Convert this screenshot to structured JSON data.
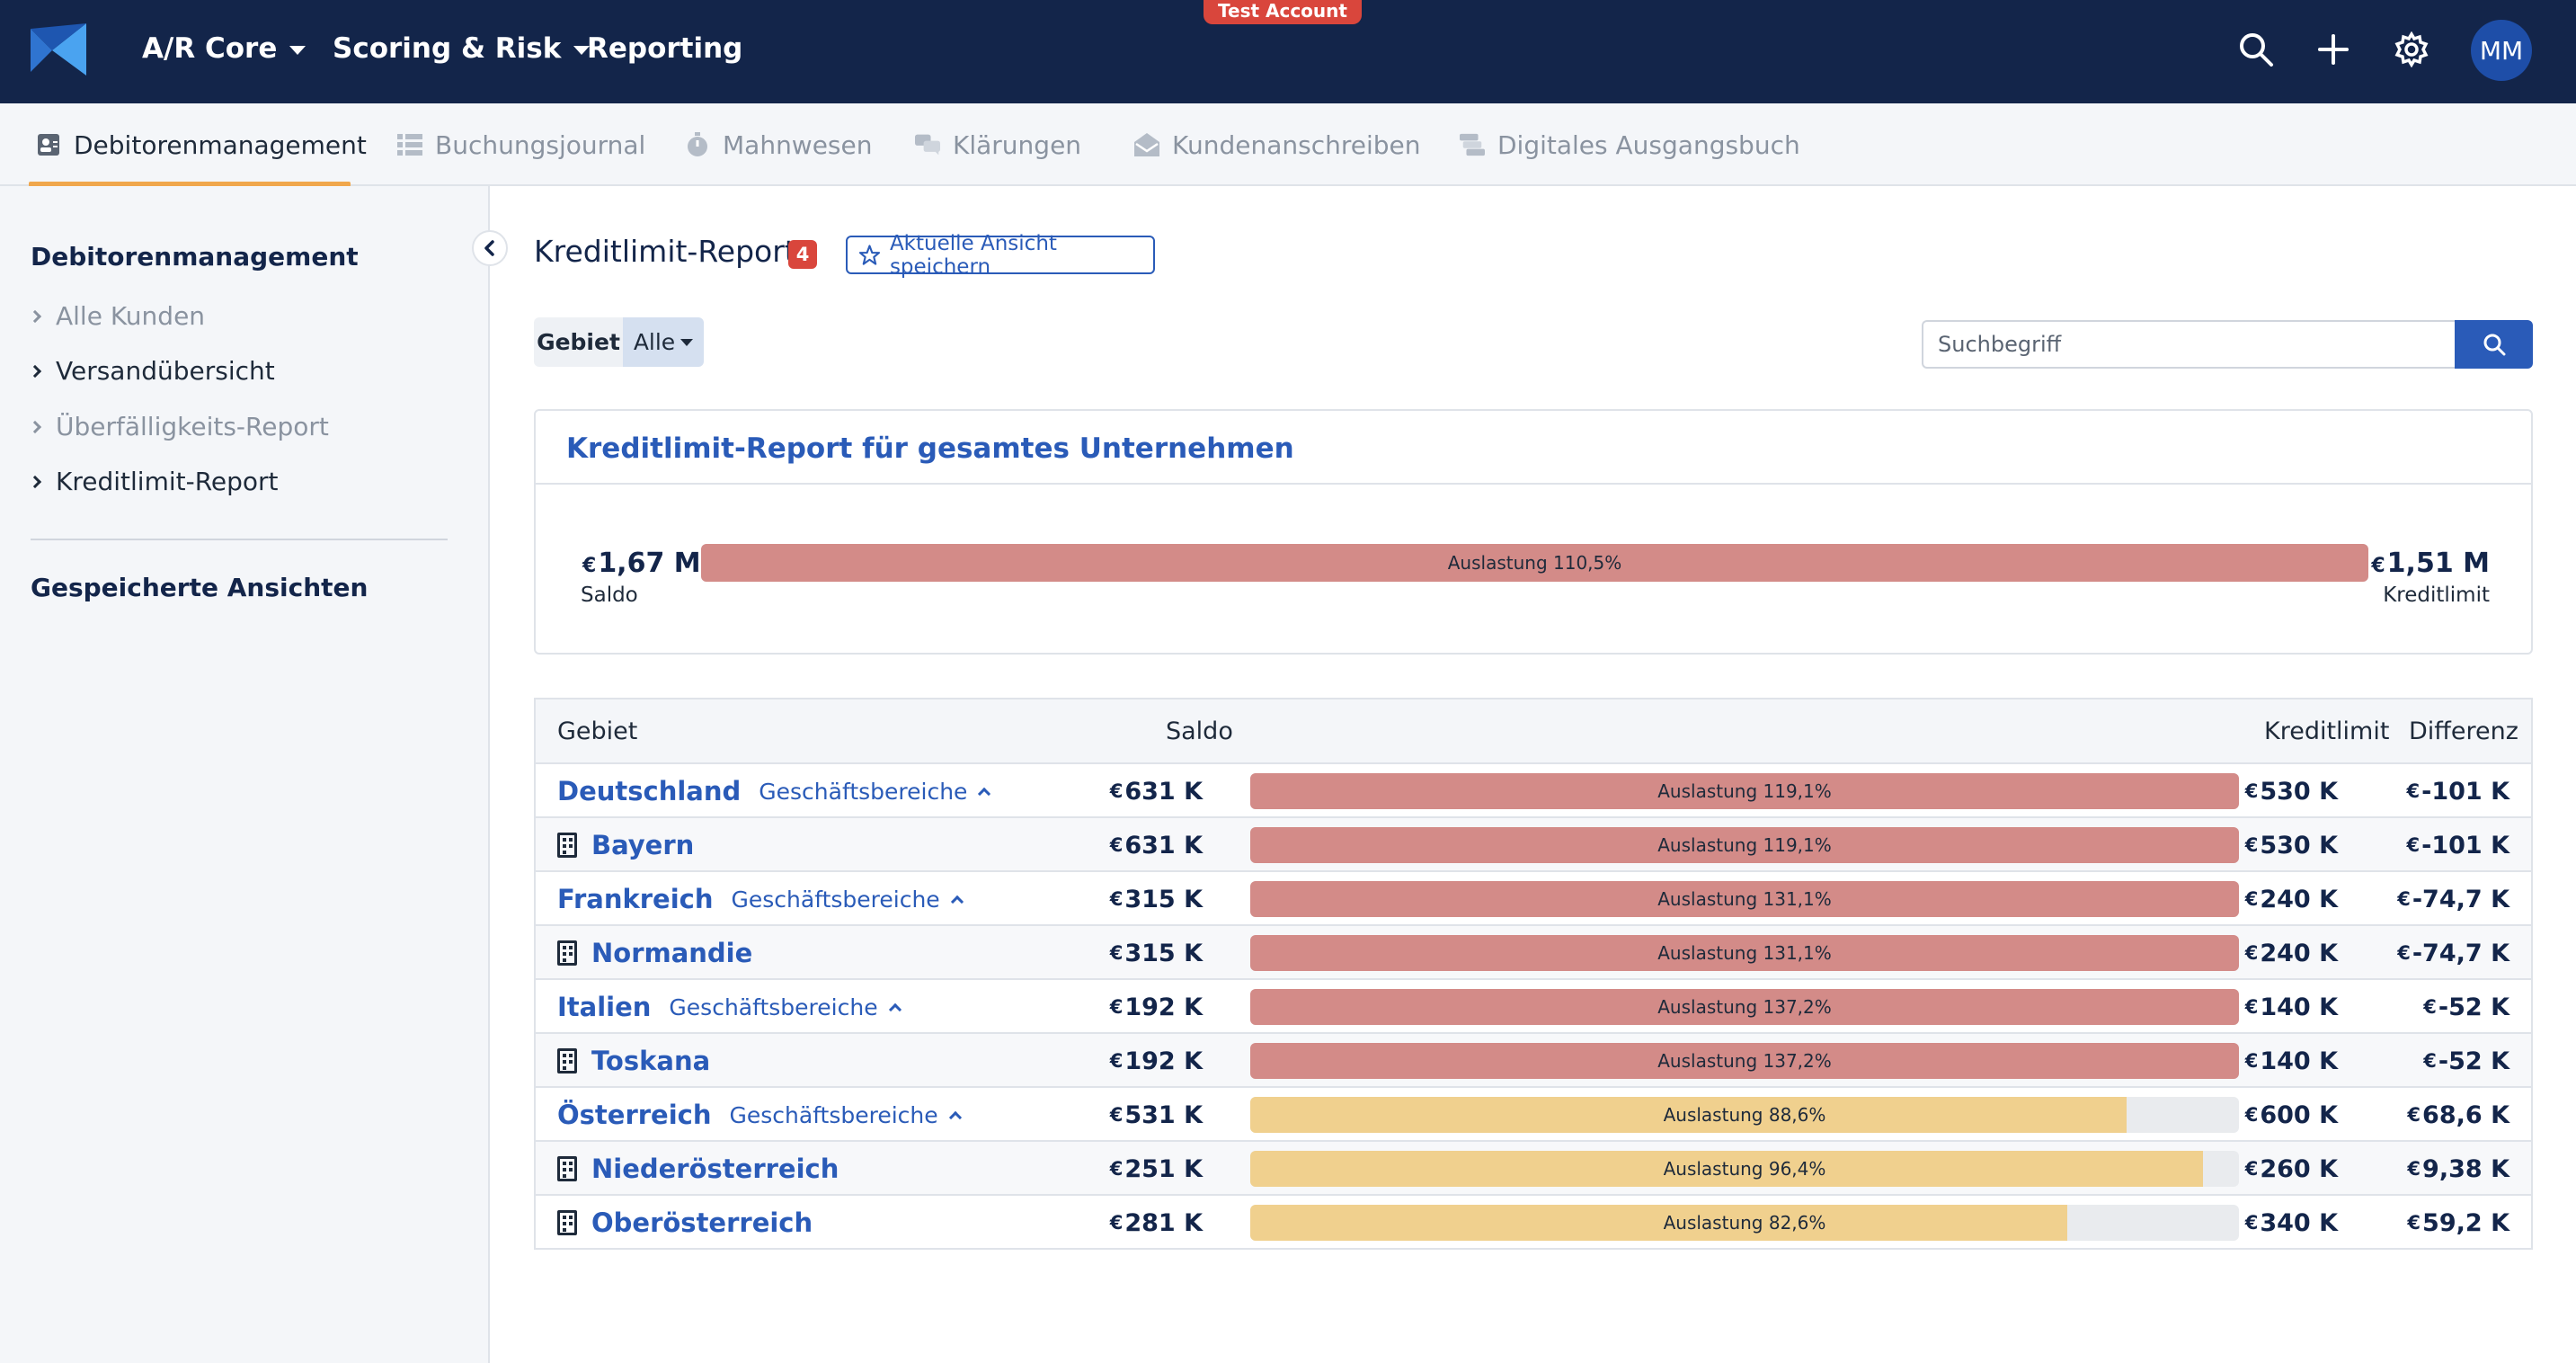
{
  "topbar": {
    "nav": [
      {
        "label": "A/R Core",
        "dropdown": true
      },
      {
        "label": "Scoring & Risk",
        "dropdown": true
      },
      {
        "label": "Reporting",
        "dropdown": false
      }
    ],
    "test_badge": "Test Account",
    "avatar": "MM",
    "icons": [
      "search-icon",
      "plus-icon",
      "gear-icon"
    ]
  },
  "tabs": [
    {
      "label": "Debitorenmanagement",
      "icon": "contact-card-icon",
      "active": true
    },
    {
      "label": "Buchungsjournal",
      "icon": "list-icon",
      "active": false
    },
    {
      "label": "Mahnwesen",
      "icon": "stopwatch-icon",
      "active": false
    },
    {
      "label": "Klärungen",
      "icon": "chat-icon",
      "active": false
    },
    {
      "label": "Kundenanschreiben",
      "icon": "envelope-icon",
      "active": false
    },
    {
      "label": "Digitales Ausgangsbuch",
      "icon": "stack-icon",
      "active": false
    }
  ],
  "sidebar": {
    "title": "Debitorenmanagement",
    "items": [
      {
        "label": "Alle Kunden",
        "muted": true
      },
      {
        "label": "Versandübersicht",
        "muted": false
      },
      {
        "label": "Überfälligkeits-Report",
        "muted": true
      },
      {
        "label": "Kreditlimit-Report",
        "muted": false
      }
    ],
    "saved_views_title": "Gespeicherte Ansichten"
  },
  "main": {
    "title": "Kreditlimit-Report",
    "count": "4",
    "save_view_label": "Aktuelle Ansicht speichern",
    "filter": {
      "label": "Gebiet",
      "value": "Alle"
    },
    "search": {
      "placeholder": "Suchbegriff",
      "value": ""
    }
  },
  "summary": {
    "title": "Kreditlimit-Report für gesamtes Unternehmen",
    "currency": "€",
    "saldo_value": "1,67 M",
    "saldo_label": "Saldo",
    "limit_value": "1,51 M",
    "limit_label": "Kreditlimit",
    "utilization_label": "Auslastung 110,5%",
    "utilization_pct": 110.5
  },
  "table": {
    "headers": {
      "gebiet": "Gebiet",
      "saldo": "Saldo",
      "kreditlimit": "Kreditlimit",
      "differenz": "Differenz"
    },
    "currency": "€",
    "rows": [
      {
        "name": "Deutschland",
        "type": "country",
        "sub": "Geschäftsbereiche",
        "saldo": "631 K",
        "util_label": "Auslastung 119,1%",
        "util_pct": 119.1,
        "limit": "530 K",
        "diff": "-101 K"
      },
      {
        "name": "Bayern",
        "type": "region",
        "sub": "",
        "saldo": "631 K",
        "util_label": "Auslastung 119,1%",
        "util_pct": 119.1,
        "limit": "530 K",
        "diff": "-101 K"
      },
      {
        "name": "Frankreich",
        "type": "country",
        "sub": "Geschäftsbereiche",
        "saldo": "315 K",
        "util_label": "Auslastung 131,1%",
        "util_pct": 131.1,
        "limit": "240 K",
        "diff": "-74,7 K"
      },
      {
        "name": "Normandie",
        "type": "region",
        "sub": "",
        "saldo": "315 K",
        "util_label": "Auslastung 131,1%",
        "util_pct": 131.1,
        "limit": "240 K",
        "diff": "-74,7 K"
      },
      {
        "name": "Italien",
        "type": "country",
        "sub": "Geschäftsbereiche",
        "saldo": "192 K",
        "util_label": "Auslastung 137,2%",
        "util_pct": 137.2,
        "limit": "140 K",
        "diff": "-52 K"
      },
      {
        "name": "Toskana",
        "type": "region",
        "sub": "",
        "saldo": "192 K",
        "util_label": "Auslastung 137,2%",
        "util_pct": 137.2,
        "limit": "140 K",
        "diff": "-52 K"
      },
      {
        "name": "Österreich",
        "type": "country",
        "sub": "Geschäftsbereiche",
        "saldo": "531 K",
        "util_label": "Auslastung 88,6%",
        "util_pct": 88.6,
        "limit": "600 K",
        "diff": "68,6 K"
      },
      {
        "name": "Niederösterreich",
        "type": "region",
        "sub": "",
        "saldo": "251 K",
        "util_label": "Auslastung 96,4%",
        "util_pct": 96.4,
        "limit": "260 K",
        "diff": "9,38 K"
      },
      {
        "name": "Oberösterreich",
        "type": "region",
        "sub": "",
        "saldo": "281 K",
        "util_label": "Auslastung 82,6%",
        "util_pct": 82.6,
        "limit": "340 K",
        "diff": "59,2 K"
      }
    ]
  },
  "colors": {
    "navbar": "#13254a",
    "accent": "#2a5bb8",
    "over_limit": "#d38b88",
    "under_limit": "#f0d08e",
    "badge": "#d9463c",
    "tab_underline": "#f0a74c"
  }
}
